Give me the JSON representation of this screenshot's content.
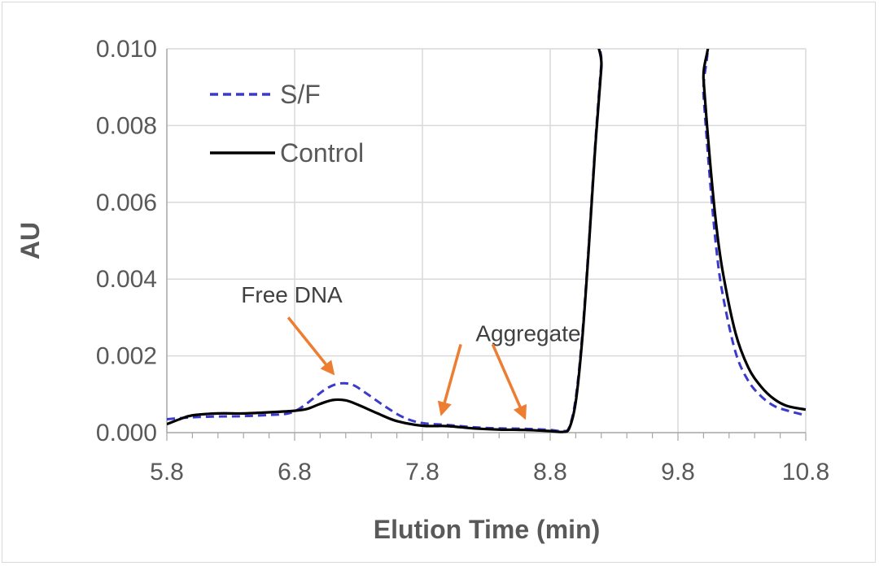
{
  "chart_data": {
    "type": "line",
    "title": "",
    "xlabel": "Elution Time (min)",
    "ylabel": "AU",
    "xlim": [
      5.8,
      10.8
    ],
    "ylim": [
      0,
      0.01
    ],
    "x_ticks": [
      "5.8",
      "6.8",
      "7.8",
      "8.8",
      "9.8",
      "10.8"
    ],
    "y_ticks": [
      "0.000",
      "0.002",
      "0.004",
      "0.006",
      "0.008",
      "0.010"
    ],
    "grid": true,
    "legend_position": "top-left",
    "series": [
      {
        "name": "S/F",
        "color": "#3a3acc",
        "style": "dashed",
        "points": [
          [
            5.8,
            0.00035
          ],
          [
            6.0,
            0.0004
          ],
          [
            6.2,
            0.00042
          ],
          [
            6.4,
            0.00043
          ],
          [
            6.6,
            0.00046
          ],
          [
            6.75,
            0.0005
          ],
          [
            6.85,
            0.00065
          ],
          [
            6.95,
            0.0009
          ],
          [
            7.05,
            0.00115
          ],
          [
            7.15,
            0.00128
          ],
          [
            7.25,
            0.00125
          ],
          [
            7.35,
            0.00105
          ],
          [
            7.5,
            0.0007
          ],
          [
            7.65,
            0.0004
          ],
          [
            7.8,
            0.00025
          ],
          [
            8.0,
            0.0002
          ],
          [
            8.2,
            0.00014
          ],
          [
            8.4,
            0.00011
          ],
          [
            8.6,
            0.0001
          ],
          [
            8.8,
            7e-05
          ],
          [
            8.9,
            4e-05
          ],
          [
            8.95,
            0.00015
          ],
          [
            9.0,
            0.0009
          ],
          [
            9.05,
            0.0025
          ],
          [
            9.1,
            0.0048
          ],
          [
            9.15,
            0.0074
          ],
          [
            9.2,
            0.0096
          ],
          [
            9.23,
            0.0105
          ],
          [
            9.97,
            0.0105
          ],
          [
            10.0,
            0.0088
          ],
          [
            10.05,
            0.0066
          ],
          [
            10.1,
            0.0048
          ],
          [
            10.15,
            0.0036
          ],
          [
            10.25,
            0.0021
          ],
          [
            10.35,
            0.00135
          ],
          [
            10.45,
            0.00095
          ],
          [
            10.55,
            0.0007
          ],
          [
            10.65,
            0.00058
          ],
          [
            10.8,
            0.00045
          ]
        ]
      },
      {
        "name": "Control",
        "color": "#000000",
        "style": "solid",
        "points": [
          [
            5.8,
            0.00022
          ],
          [
            5.9,
            0.00035
          ],
          [
            6.0,
            0.00045
          ],
          [
            6.2,
            0.0005
          ],
          [
            6.4,
            0.0005
          ],
          [
            6.6,
            0.00053
          ],
          [
            6.8,
            0.00057
          ],
          [
            6.9,
            0.00062
          ],
          [
            7.0,
            0.00075
          ],
          [
            7.1,
            0.00085
          ],
          [
            7.2,
            0.00084
          ],
          [
            7.3,
            0.00072
          ],
          [
            7.45,
            0.0005
          ],
          [
            7.6,
            0.0003
          ],
          [
            7.8,
            0.00018
          ],
          [
            8.0,
            0.00017
          ],
          [
            8.2,
            0.00011
          ],
          [
            8.4,
            8e-05
          ],
          [
            8.6,
            7e-05
          ],
          [
            8.8,
            4e-05
          ],
          [
            8.9,
            2e-05
          ],
          [
            8.95,
            0.00012
          ],
          [
            9.0,
            0.0008
          ],
          [
            9.05,
            0.0024
          ],
          [
            9.1,
            0.0047
          ],
          [
            9.15,
            0.0073
          ],
          [
            9.2,
            0.0095
          ],
          [
            9.23,
            0.0105
          ],
          [
            9.98,
            0.0105
          ],
          [
            10.0,
            0.0092
          ],
          [
            10.05,
            0.0071
          ],
          [
            10.1,
            0.0054
          ],
          [
            10.15,
            0.0042
          ],
          [
            10.25,
            0.0026
          ],
          [
            10.35,
            0.0017
          ],
          [
            10.45,
            0.0012
          ],
          [
            10.55,
            0.00088
          ],
          [
            10.65,
            0.0007
          ],
          [
            10.8,
            0.0006
          ]
        ]
      }
    ],
    "annotations": [
      {
        "text": "Free DNA",
        "label_at": [
          6.3,
          0.0036
        ],
        "arrow_from": [
          6.75,
          0.003
        ],
        "arrow_to": [
          7.1,
          0.00155
        ]
      },
      {
        "text": "Aggregate",
        "label_at": [
          8.15,
          0.0026
        ],
        "arrow_from": [
          8.1,
          0.0023
        ],
        "arrow_to": [
          7.95,
          0.0005
        ]
      },
      {
        "text": "",
        "arrow_from": [
          8.35,
          0.0023
        ],
        "arrow_to": [
          8.6,
          0.0004
        ]
      }
    ],
    "annotation_color": "#ed7d31"
  }
}
